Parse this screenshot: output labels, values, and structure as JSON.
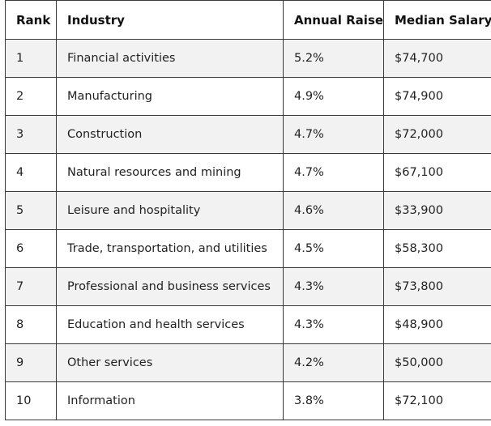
{
  "table": {
    "headers": [
      "Rank",
      "Industry",
      "Annual Raise",
      "Median Salary"
    ],
    "rows": [
      [
        "1",
        "Financial activities",
        "5.2%",
        "$74,700"
      ],
      [
        "2",
        "Manufacturing",
        "4.9%",
        "$74,900"
      ],
      [
        "3",
        "Construction",
        "4.7%",
        "$72,000"
      ],
      [
        "4",
        "Natural resources and mining",
        "4.7%",
        "$67,100"
      ],
      [
        "5",
        "Leisure and hospitality",
        "4.6%",
        "$33,900"
      ],
      [
        "6",
        "Trade, transportation, and utilities",
        "4.5%",
        "$58,300"
      ],
      [
        "7",
        "Professional and business services",
        "4.3%",
        "$73,800"
      ],
      [
        "8",
        "Education and health services",
        "4.3%",
        "$48,900"
      ],
      [
        "9",
        "Other services",
        "4.2%",
        "$50,000"
      ],
      [
        "10",
        "Information",
        "3.8%",
        "$72,100"
      ]
    ]
  }
}
